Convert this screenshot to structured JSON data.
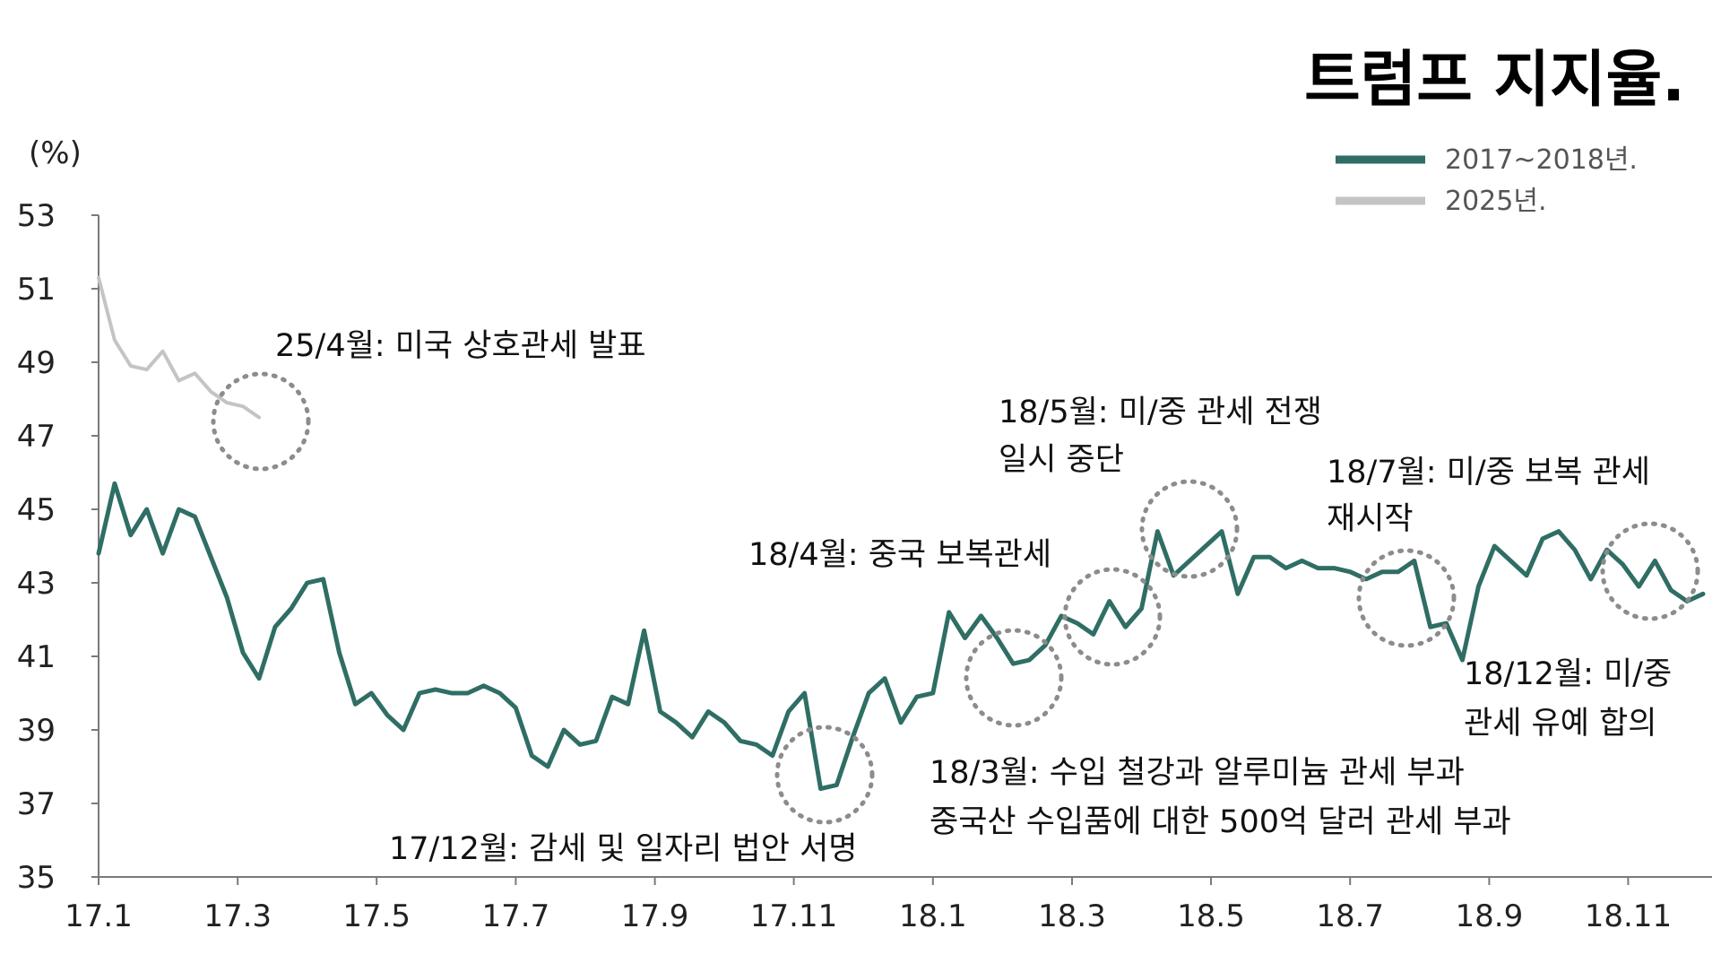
{
  "chart_data": {
    "type": "line",
    "title": "트럼프 지지율.",
    "ylabel": "(%)",
    "xlabel": "",
    "ylim": [
      35,
      53
    ],
    "y_ticks": [
      "53",
      "51",
      "49",
      "47",
      "45",
      "43",
      "41",
      "39",
      "37",
      "35"
    ],
    "x_ticks": [
      "17.1",
      "17.3",
      "17.5",
      "17.7",
      "17.9",
      "17.11",
      "18.1",
      "18.3",
      "18.5",
      "18.7",
      "18.9",
      "18.11"
    ],
    "x_tick_positions": [
      0,
      8.67,
      17.33,
      26,
      34.67,
      43.33,
      52,
      60.67,
      69.33,
      78,
      86.67,
      95.33
    ],
    "legend_position": "top-right",
    "grid": false,
    "series": [
      {
        "name": "2017~2018년.",
        "color": "#2f6e64",
        "values": [
          43.8,
          45.7,
          44.3,
          45.0,
          43.8,
          45.0,
          44.8,
          43.7,
          42.6,
          41.1,
          40.4,
          41.8,
          42.3,
          43.0,
          43.1,
          41.1,
          39.7,
          40.0,
          39.4,
          39.0,
          40.0,
          40.1,
          40.0,
          40.0,
          40.2,
          40.0,
          39.6,
          38.3,
          38.0,
          39.0,
          38.6,
          38.7,
          39.9,
          39.7,
          41.7,
          39.5,
          39.2,
          38.8,
          39.5,
          39.2,
          38.7,
          38.6,
          38.3,
          39.5,
          40.0,
          37.4,
          37.5,
          38.8,
          40.0,
          40.4,
          39.2,
          39.9,
          40.0,
          42.2,
          41.5,
          42.1,
          41.5,
          40.8,
          40.9,
          41.3,
          42.1,
          41.9,
          41.6,
          42.5,
          41.8,
          42.3,
          44.4,
          43.2,
          43.6,
          44.0,
          44.4,
          42.7,
          43.7,
          43.7,
          43.4,
          43.6,
          43.4,
          43.4,
          43.3,
          43.1,
          43.3,
          43.3,
          43.6,
          41.8,
          41.9,
          40.9,
          42.9,
          44.0,
          43.6,
          43.2,
          44.2,
          44.4,
          43.9,
          43.1,
          43.9,
          43.5,
          42.9,
          43.6,
          42.8,
          42.5,
          42.7
        ]
      },
      {
        "name": "2025년.",
        "color": "#c4c4c4",
        "values": [
          51.3,
          49.6,
          48.9,
          48.8,
          49.3,
          48.5,
          48.7,
          48.2,
          47.9,
          47.8,
          47.5
        ]
      }
    ],
    "annotations": [
      {
        "lines": [
          "25/4월: 미국 상호관세 발표"
        ]
      },
      {
        "lines": [
          "18/5월: 미/중 관세 전쟁",
          "일시 중단"
        ]
      },
      {
        "lines": [
          "18/7월: 미/중 보복 관세",
          "재시작"
        ]
      },
      {
        "lines": [
          "18/4월: 중국 보복관세"
        ]
      },
      {
        "lines": [
          "18/12월: 미/중",
          "관세 유예 합의"
        ]
      },
      {
        "lines": [
          "18/3월: 수입 철강과 알루미늄 관세 부과",
          "중국산 수입품에 대한 500억 달러 관세 부과"
        ]
      },
      {
        "lines": [
          "17/12월: 감세 및 일자리 법안 서명"
        ]
      }
    ]
  }
}
